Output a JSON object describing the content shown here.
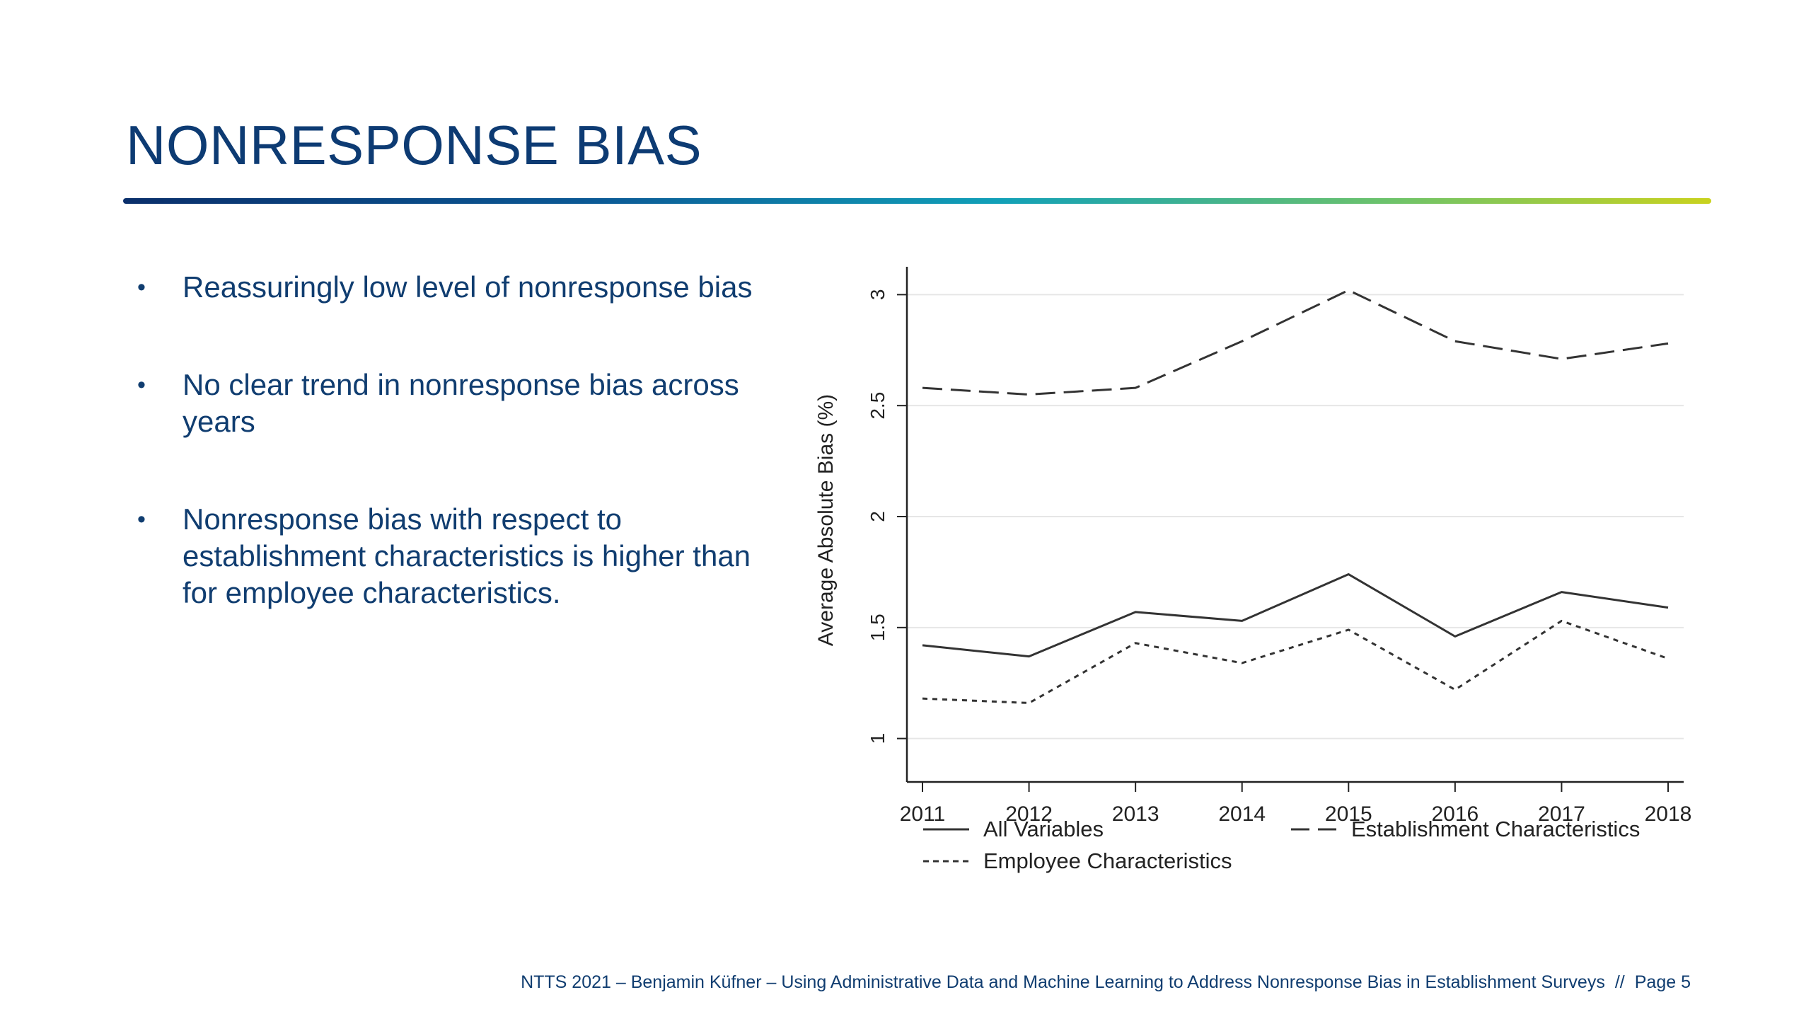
{
  "slide": {
    "title": "NONRESPONSE BIAS",
    "bullets": [
      "Reassuringly low level of nonresponse bias",
      "No clear trend in nonresponse bias across years",
      "Nonresponse bias with respect to establishment characteristics is higher than for employee characteristics."
    ],
    "footer": {
      "text": "NTTS 2021 – Benjamin Küfner – Using Administrative Data and Machine Learning to Address Nonresponse Bias in Establishment Surveys",
      "separator": "//",
      "page_label": "Page",
      "page_number": "5"
    }
  },
  "chart_data": {
    "type": "line",
    "title": "",
    "xlabel": "",
    "ylabel": "Average Absolute Bias (%)",
    "x": [
      2011,
      2012,
      2013,
      2014,
      2015,
      2016,
      2017,
      2018
    ],
    "x_ticks": [
      "2011",
      "2012",
      "2013",
      "2014",
      "2015",
      "2016",
      "2017",
      "2018"
    ],
    "ylim": [
      0.9,
      3.1
    ],
    "y_ticks": [
      "1",
      "1.5",
      "2",
      "2.5",
      "3"
    ],
    "grid": true,
    "legend_position": "bottom",
    "series": [
      {
        "name": "All Variables",
        "style": "solid",
        "color": "#333333",
        "values": [
          1.42,
          1.37,
          1.57,
          1.53,
          1.74,
          1.46,
          1.66,
          1.59
        ]
      },
      {
        "name": "Establishment Characteristics",
        "style": "dashed",
        "color": "#333333",
        "values": [
          2.58,
          2.55,
          2.58,
          2.79,
          3.02,
          2.79,
          2.71,
          2.78
        ]
      },
      {
        "name": "Employee Characteristics",
        "style": "dotted",
        "color": "#333333",
        "values": [
          1.18,
          1.16,
          1.43,
          1.34,
          1.49,
          1.22,
          1.53,
          1.36
        ]
      }
    ]
  }
}
